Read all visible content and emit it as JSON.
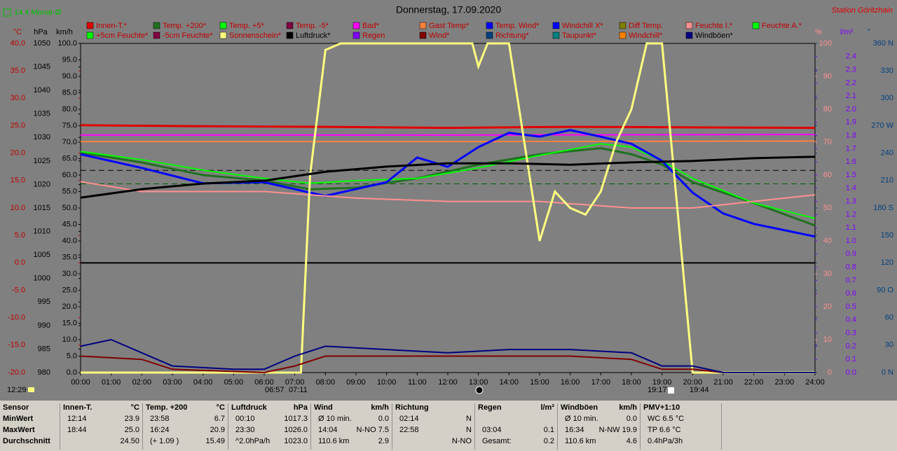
{
  "chart_data": {
    "type": "line",
    "title": "Donnerstag, 17.09.2020",
    "station": "Station Göritzhain",
    "month_avg": {
      "value": 14.4,
      "label": "14.4 Monat-Ø",
      "color": "#00c000"
    },
    "stamp": "12:29",
    "sun_times": [
      "06:57",
      "07:11",
      "19:17",
      "19:44"
    ],
    "xlim": [
      0,
      24
    ],
    "xticks": [
      {
        "value": 0,
        "label": "00:00"
      },
      {
        "value": 1,
        "label": "01:00"
      },
      {
        "value": 2,
        "label": "02:00"
      },
      {
        "value": 3,
        "label": "03:00"
      },
      {
        "value": 4,
        "label": "04:00"
      },
      {
        "value": 5,
        "label": "05:00"
      },
      {
        "value": 6,
        "label": "06:00"
      },
      {
        "value": 7,
        "label": "07:00"
      },
      {
        "value": 8,
        "label": "08:00"
      },
      {
        "value": 9,
        "label": "09:00"
      },
      {
        "value": 10,
        "label": "10:00"
      },
      {
        "value": 11,
        "label": "11:00"
      },
      {
        "value": 12,
        "label": "12:00"
      },
      {
        "value": 13,
        "label": "13:00"
      },
      {
        "value": 14,
        "label": "14:00"
      },
      {
        "value": 15,
        "label": "15:00"
      },
      {
        "value": 16,
        "label": "16:00"
      },
      {
        "value": 17,
        "label": "17:00"
      },
      {
        "value": 18,
        "label": "18:00"
      },
      {
        "value": 19,
        "label": "19:00"
      },
      {
        "value": 20,
        "label": "20:00"
      },
      {
        "value": 21,
        "label": "21:00"
      },
      {
        "value": 22,
        "label": "22:00"
      },
      {
        "value": 23,
        "label": "23:00"
      },
      {
        "value": 24,
        "label": "24:00"
      }
    ],
    "axes": [
      {
        "unit": "°C",
        "side": "left",
        "color": "#c00000",
        "lim": [
          -20,
          40
        ],
        "ticks": [
          {
            "value": -20,
            "label": "-20.0"
          },
          {
            "value": -15,
            "label": "-15.0"
          },
          {
            "value": -10,
            "label": "-10.0"
          },
          {
            "value": -5,
            "label": "-5.0"
          },
          {
            "value": 0,
            "label": "0.0"
          },
          {
            "value": 5,
            "label": "5.0"
          },
          {
            "value": 10,
            "label": "10.0"
          },
          {
            "value": 15,
            "label": "15.0"
          },
          {
            "value": 20,
            "label": "20.0"
          },
          {
            "value": 25,
            "label": "25.0"
          },
          {
            "value": 30,
            "label": "30.0"
          },
          {
            "value": 35,
            "label": "35.0"
          },
          {
            "value": 40,
            "label": "40.0"
          }
        ]
      },
      {
        "unit": "hPa",
        "side": "left",
        "color": "#000000",
        "lim": [
          980,
          1050
        ],
        "ticks": [
          980,
          985,
          990,
          995,
          1000,
          1005,
          1010,
          1015,
          1020,
          1025,
          1030,
          1035,
          1040,
          1045,
          1050
        ]
      },
      {
        "unit": "km/h",
        "side": "left",
        "color": "#000000",
        "lim": [
          0,
          100
        ],
        "ticks": [
          {
            "value": 0,
            "label": "0.0"
          },
          {
            "value": 5,
            "label": "5.0"
          },
          {
            "value": 10,
            "label": "10.0"
          },
          {
            "value": 15,
            "label": "15.0"
          },
          {
            "value": 20,
            "label": "20.0"
          },
          {
            "value": 25,
            "label": "25.0"
          },
          {
            "value": 30,
            "label": "30.0"
          },
          {
            "value": 35,
            "label": "35.0"
          },
          {
            "value": 40,
            "label": "40.0"
          },
          {
            "value": 45,
            "label": "45.0"
          },
          {
            "value": 50,
            "label": "50.0"
          },
          {
            "value": 55,
            "label": "55.0"
          },
          {
            "value": 60,
            "label": "60.0"
          },
          {
            "value": 65,
            "label": "65.0"
          },
          {
            "value": 70,
            "label": "70.0"
          },
          {
            "value": 75,
            "label": "75.0"
          },
          {
            "value": 80,
            "label": "80.0"
          },
          {
            "value": 85,
            "label": "85.0"
          },
          {
            "value": 90,
            "label": "90.0"
          },
          {
            "value": 95,
            "label": "95.0"
          },
          {
            "value": 100,
            "label": "100.0"
          }
        ]
      },
      {
        "unit": "%",
        "side": "right",
        "color": "#ff9090",
        "lim": [
          0,
          100
        ],
        "ticks": [
          0,
          10,
          20,
          30,
          40,
          50,
          60,
          70,
          80,
          90,
          100
        ]
      },
      {
        "unit": "l/m²",
        "side": "right",
        "color": "#8000ff",
        "lim": [
          0,
          2.5
        ],
        "ticks": [
          {
            "value": 0,
            "label": "0.0"
          },
          0.1,
          0.2,
          0.3,
          0.4,
          0.5,
          0.6,
          0.7,
          0.8,
          0.9,
          {
            "value": 1,
            "label": "1.0"
          },
          1.1,
          1.2,
          1.3,
          1.4,
          1.5,
          1.6,
          1.7,
          1.8,
          1.9,
          {
            "value": 2,
            "label": "2.0"
          },
          2.1,
          2.2,
          2.3,
          2.4
        ]
      },
      {
        "unit": "°",
        "side": "right",
        "color": "#004080",
        "lim": [
          0,
          360
        ],
        "ticks": [
          {
            "value": 0,
            "label": "0 N"
          },
          30,
          60,
          {
            "value": 90,
            "label": "90 O"
          },
          120,
          150,
          {
            "value": 180,
            "label": "180 S"
          },
          210,
          240,
          {
            "value": 270,
            "label": "270 W"
          },
          300,
          330,
          {
            "value": 360,
            "label": "360 N"
          }
        ]
      }
    ],
    "zero_line": true,
    "pressure_avg": 1023.0,
    "series": [
      {
        "name": "Innen-T.*",
        "color": "#e00000",
        "axis": 0,
        "width": 3,
        "x": [
          0,
          4,
          8,
          12,
          16,
          20,
          24
        ],
        "values": [
          25.1,
          24.9,
          24.8,
          24.6,
          24.8,
          24.7,
          24.6
        ]
      },
      {
        "name": "Temp. +200*",
        "color": "#207020",
        "axis": 0,
        "width": 3,
        "x": [
          0,
          2,
          4,
          6,
          7.5,
          9,
          11,
          13,
          15,
          17,
          18,
          19,
          20,
          22,
          24
        ],
        "values": [
          20.1,
          18.3,
          16.0,
          15.0,
          13.4,
          13.7,
          15.4,
          17.9,
          19.8,
          20.9,
          19.8,
          17.9,
          14.7,
          10.9,
          6.8
        ]
      },
      {
        "name": "Temp. +5*",
        "color": "#00ff00",
        "axis": 0,
        "width": 2,
        "x": [
          0,
          2,
          4,
          6,
          7.5,
          9,
          11,
          13,
          15,
          17,
          18,
          19,
          20,
          22,
          24
        ],
        "values": [
          20.3,
          18.8,
          16.9,
          15.4,
          14.5,
          15.0,
          15.4,
          17.3,
          19.6,
          21.7,
          21.1,
          18.6,
          15.4,
          10.9,
          8.1
        ]
      },
      {
        "name": "Temp. -5*",
        "color": "#800040"
      },
      {
        "name": "Bad*",
        "color": "#ff00ff",
        "axis": 0,
        "width": 2,
        "x": [
          0,
          12,
          24
        ],
        "values": [
          23.3,
          23.3,
          23.4
        ]
      },
      {
        "name": "Gast Temp*",
        "color": "#ff8040",
        "axis": 0,
        "width": 2,
        "x": [
          0,
          12,
          24
        ],
        "values": [
          22.1,
          22.1,
          22.2
        ]
      },
      {
        "name": "Temp. Wind*",
        "color": "#0000ff",
        "axis": 0,
        "width": 3,
        "x": [
          0,
          2,
          4,
          6,
          7.5,
          8,
          10,
          11,
          12,
          13,
          14,
          15,
          16,
          17,
          18,
          19,
          20,
          21,
          22,
          24
        ],
        "values": [
          19.8,
          17.3,
          14.5,
          14.7,
          12.8,
          12.2,
          14.7,
          19.2,
          17.5,
          21.1,
          23.7,
          23.0,
          24.2,
          23.0,
          21.7,
          18.6,
          12.8,
          9.0,
          7.1,
          4.8
        ]
      },
      {
        "name": "Windchill X*",
        "color": "#0000ff"
      },
      {
        "name": "Diff Temp.",
        "color": "#808000"
      },
      {
        "name": "Feuchte I.*",
        "color": "#ff9090",
        "axis": 3,
        "width": 2,
        "x": [
          0,
          2,
          6,
          9,
          12,
          15,
          18,
          20,
          24
        ],
        "values": [
          58,
          55,
          55,
          53,
          52,
          52,
          50,
          50,
          54
        ]
      },
      {
        "name": "Feuchte A.*",
        "color": "#00ff00"
      },
      {
        "name": "+5cm Feuchte*",
        "color": "#00ff00"
      },
      {
        "name": "-5cm Feuchte*",
        "color": "#800040"
      },
      {
        "name": "Sonnenschein*",
        "color": "#ffff80",
        "axis": 3,
        "width": 3,
        "x": [
          0,
          7.2,
          7.5,
          8,
          8.5,
          11,
          12.8,
          13,
          13.3,
          14,
          14.5,
          15,
          15.5,
          16,
          16.5,
          17,
          17.5,
          18,
          18.5,
          19,
          19.5,
          20,
          24
        ],
        "values": [
          0,
          0,
          60,
          98,
          100,
          100,
          100,
          93,
          100,
          100,
          70,
          40,
          55,
          50,
          48,
          55,
          70,
          80,
          100,
          100,
          50,
          0,
          0
        ]
      },
      {
        "name": "Luftdruck*",
        "color": "#000000",
        "axis": 1,
        "width": 3,
        "x": [
          0,
          2,
          4,
          6,
          8,
          10,
          12,
          14,
          16,
          18,
          20,
          22,
          24
        ],
        "values": [
          1017.2,
          1019.0,
          1020.2,
          1020.8,
          1022.7,
          1023.8,
          1024.5,
          1024.5,
          1024.2,
          1024.7,
          1025.0,
          1025.6,
          1025.9
        ]
      },
      {
        "name": "Regen",
        "color": "#8000ff"
      },
      {
        "name": "Wind*",
        "color": "#800000",
        "axis": 2,
        "width": 2,
        "x": [
          0,
          2,
          3,
          6,
          7,
          8,
          10,
          12,
          14,
          16,
          18,
          19,
          20,
          21,
          24
        ],
        "values": [
          5,
          4,
          1,
          0,
          2,
          5,
          5,
          5,
          5,
          5,
          4,
          1,
          1,
          0,
          0
        ]
      },
      {
        "name": "Richtung*",
        "color": "#004080"
      },
      {
        "name": "Taupunkt*",
        "color": "#008080"
      },
      {
        "name": "Windchill*",
        "color": "#ff8000"
      },
      {
        "name": "Windböen*",
        "color": "#000080",
        "axis": 2,
        "width": 2,
        "x": [
          0,
          1,
          2,
          3,
          5,
          6,
          7,
          8,
          10,
          12,
          14,
          16,
          18,
          19,
          20,
          21,
          24
        ],
        "values": [
          8,
          10,
          6,
          2,
          1,
          1,
          5,
          8,
          7,
          6,
          7,
          7,
          6,
          2,
          2,
          0,
          0
        ]
      }
    ]
  },
  "table": {
    "header": [
      {
        "l": "Sensor"
      },
      {
        "l": "Innen-T.",
        "r": "°C"
      },
      {
        "l": "Temp. +200",
        "r": "°C"
      },
      {
        "l": "Luftdruck",
        "r": "hPa"
      },
      {
        "l": "Wind",
        "r": "km/h"
      },
      {
        "l": "Richtung"
      },
      {
        "l": "Regen",
        "r": "l/m²"
      },
      {
        "l": "Windböen",
        "r": "km/h"
      },
      {
        "l": "PMV+1:10"
      }
    ],
    "rows": [
      [
        {
          "l": "MinWert"
        },
        {
          "l": "12:14",
          "r": "23.9"
        },
        {
          "l": "23:58",
          "r": "6.7"
        },
        {
          "l": "00:10",
          "r": "1017.3"
        },
        {
          "l": "Ø 10 min.",
          "r": "0.0"
        },
        {
          "l": "02:14",
          "r": "N"
        },
        {},
        {
          "l": "Ø 10 min.",
          "r": "0.0"
        },
        {
          "l": "WC 6.5 °C"
        }
      ],
      [
        {
          "l": "MaxWert"
        },
        {
          "l": "18:44",
          "r": "25.0"
        },
        {
          "l": "16:24",
          "r": "20.9"
        },
        {
          "l": "23:30",
          "r": "1026.0"
        },
        {
          "l": "14:04",
          "r": "N-NO 7.5"
        },
        {
          "l": "22:58",
          "r": "N"
        },
        {
          "l": "03:04",
          "r": "0.1"
        },
        {
          "l": "16:34",
          "r": "N-NW 19.9"
        },
        {
          "l": "TP 6.6 °C"
        }
      ],
      [
        {
          "l": "Durchschnitt"
        },
        {
          "r": "24.50"
        },
        {
          "l": "(+ 1.09 )",
          "r": "15.49"
        },
        {
          "l": "^2.0hPa/h",
          "r": "1023.0"
        },
        {
          "l": "110.6 km",
          "r": "2.9"
        },
        {
          "r": "N-NO"
        },
        {
          "l": "Gesamt:",
          "r": "0.2"
        },
        {
          "l": "110.6 km",
          "r": "4.6"
        },
        {
          "l": "0.4hPa/3h"
        }
      ]
    ]
  }
}
